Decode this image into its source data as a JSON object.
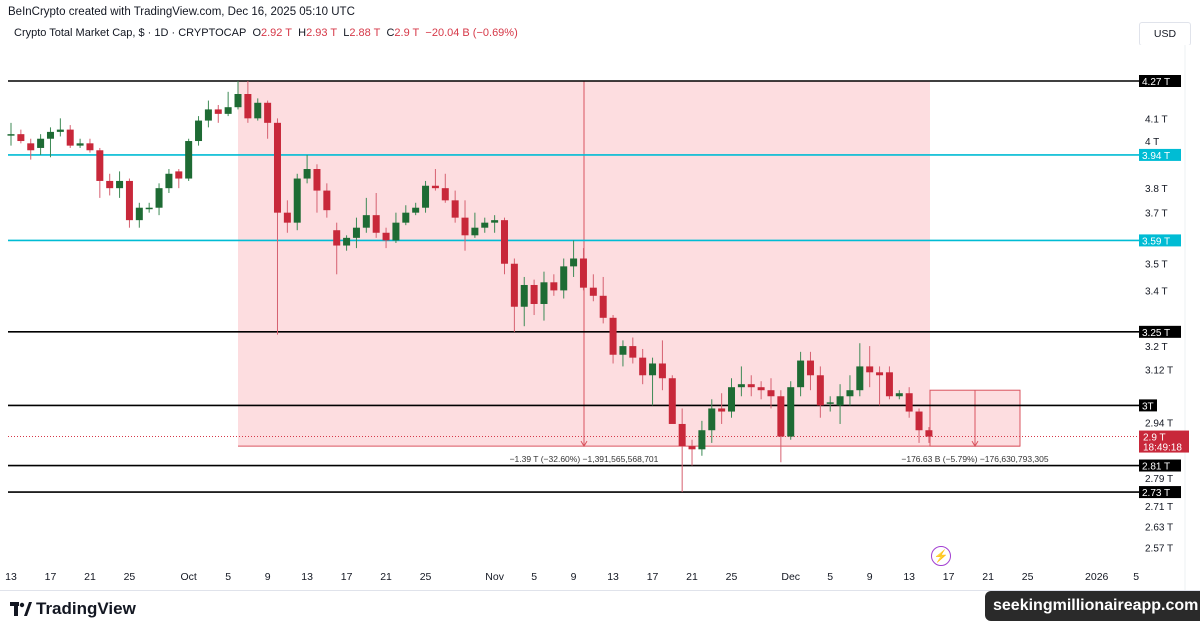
{
  "header": {
    "credit": "BeInCrypto created with TradingView.com, Dec 16, 2025 05:10 UTC",
    "symbol": "Crypto Total Market Cap, $ · 1D · CRYPTOCAP",
    "o_label": "O",
    "o": "2.92 T",
    "h_label": "H",
    "h": "2.93 T",
    "l_label": "L",
    "l": "2.88 T",
    "c_label": "C",
    "c": "2.9 T",
    "change": "−20.04 B (−0.69%)",
    "currency": "USD"
  },
  "footer": {
    "logo": "TradingView",
    "watermark": "seekingmillionaireapp.com"
  },
  "icons": {
    "alert": "lightning-icon"
  },
  "colors": {
    "up": "#1e6b34",
    "down": "#c8283a",
    "cyan": "#00bcd4",
    "zone": "#fddde0",
    "zone_border": "#d9545f"
  },
  "chart_data": {
    "type": "candlestick",
    "y_scale": "log",
    "ylim": [
      2.52,
      4.33
    ],
    "x_start": "2025-09-13",
    "candles_ohlc_T": [
      [
        4.03,
        4.08,
        3.98,
        4.03
      ],
      [
        4.03,
        4.05,
        3.99,
        4.0
      ],
      [
        3.99,
        4.01,
        3.92,
        3.96
      ],
      [
        3.97,
        4.03,
        3.94,
        4.01
      ],
      [
        4.01,
        4.06,
        3.93,
        4.04
      ],
      [
        4.04,
        4.1,
        4.02,
        4.05
      ],
      [
        4.05,
        4.07,
        3.97,
        3.98
      ],
      [
        3.98,
        4.01,
        3.97,
        3.99
      ],
      [
        3.99,
        4.01,
        3.95,
        3.96
      ],
      [
        3.96,
        3.97,
        3.76,
        3.83
      ],
      [
        3.83,
        3.86,
        3.77,
        3.8
      ],
      [
        3.8,
        3.87,
        3.76,
        3.83
      ],
      [
        3.83,
        3.84,
        3.64,
        3.67
      ],
      [
        3.67,
        3.74,
        3.64,
        3.72
      ],
      [
        3.72,
        3.74,
        3.7,
        3.72
      ],
      [
        3.72,
        3.82,
        3.69,
        3.8
      ],
      [
        3.8,
        3.88,
        3.78,
        3.86
      ],
      [
        3.87,
        3.88,
        3.8,
        3.84
      ],
      [
        3.84,
        4.01,
        3.83,
        4.0
      ],
      [
        4.0,
        4.11,
        3.98,
        4.09
      ],
      [
        4.09,
        4.18,
        4.06,
        4.14
      ],
      [
        4.14,
        4.16,
        4.08,
        4.12
      ],
      [
        4.12,
        4.22,
        4.11,
        4.15
      ],
      [
        4.15,
        4.27,
        4.14,
        4.21
      ],
      [
        4.21,
        4.27,
        4.08,
        4.1
      ],
      [
        4.1,
        4.19,
        4.09,
        4.17
      ],
      [
        4.17,
        4.18,
        4.01,
        4.08
      ],
      [
        4.08,
        4.1,
        3.24,
        3.7
      ],
      [
        3.7,
        3.75,
        3.62,
        3.66
      ],
      [
        3.66,
        3.86,
        3.63,
        3.84
      ],
      [
        3.84,
        3.94,
        3.82,
        3.88
      ],
      [
        3.88,
        3.9,
        3.7,
        3.79
      ],
      [
        3.79,
        3.82,
        3.68,
        3.71
      ],
      [
        3.63,
        3.66,
        3.46,
        3.57
      ],
      [
        3.57,
        3.61,
        3.55,
        3.6
      ],
      [
        3.6,
        3.68,
        3.56,
        3.64
      ],
      [
        3.64,
        3.76,
        3.62,
        3.69
      ],
      [
        3.69,
        3.78,
        3.6,
        3.62
      ],
      [
        3.62,
        3.64,
        3.56,
        3.59
      ],
      [
        3.59,
        3.7,
        3.58,
        3.66
      ],
      [
        3.66,
        3.73,
        3.65,
        3.7
      ],
      [
        3.7,
        3.74,
        3.69,
        3.72
      ],
      [
        3.72,
        3.83,
        3.7,
        3.81
      ],
      [
        3.81,
        3.88,
        3.79,
        3.8
      ],
      [
        3.8,
        3.86,
        3.74,
        3.75
      ],
      [
        3.75,
        3.79,
        3.66,
        3.68
      ],
      [
        3.68,
        3.75,
        3.55,
        3.61
      ],
      [
        3.61,
        3.7,
        3.6,
        3.64
      ],
      [
        3.64,
        3.68,
        3.62,
        3.66
      ],
      [
        3.66,
        3.69,
        3.62,
        3.67
      ],
      [
        3.67,
        3.68,
        3.46,
        3.5
      ],
      [
        3.5,
        3.52,
        3.25,
        3.34
      ],
      [
        3.34,
        3.45,
        3.27,
        3.42
      ],
      [
        3.42,
        3.44,
        3.31,
        3.35
      ],
      [
        3.35,
        3.47,
        3.29,
        3.43
      ],
      [
        3.43,
        3.46,
        3.38,
        3.4
      ],
      [
        3.4,
        3.52,
        3.37,
        3.49
      ],
      [
        3.49,
        3.59,
        3.45,
        3.52
      ],
      [
        3.52,
        3.56,
        3.4,
        3.41
      ],
      [
        3.41,
        3.46,
        3.36,
        3.38
      ],
      [
        3.38,
        3.45,
        3.28,
        3.3
      ],
      [
        3.3,
        3.31,
        3.14,
        3.17
      ],
      [
        3.17,
        3.22,
        3.13,
        3.2
      ],
      [
        3.2,
        3.23,
        3.14,
        3.16
      ],
      [
        3.16,
        3.19,
        3.07,
        3.1
      ],
      [
        3.1,
        3.16,
        3.0,
        3.14
      ],
      [
        3.14,
        3.22,
        3.05,
        3.09
      ],
      [
        3.09,
        3.1,
        2.96,
        2.94
      ],
      [
        2.94,
        2.99,
        2.73,
        2.87
      ],
      [
        2.87,
        2.89,
        2.81,
        2.86
      ],
      [
        2.86,
        2.95,
        2.84,
        2.92
      ],
      [
        2.92,
        3.02,
        2.88,
        2.99
      ],
      [
        2.99,
        3.04,
        2.94,
        2.98
      ],
      [
        2.98,
        3.09,
        2.96,
        3.06
      ],
      [
        3.06,
        3.13,
        3.03,
        3.07
      ],
      [
        3.07,
        3.1,
        3.03,
        3.06
      ],
      [
        3.06,
        3.08,
        3.02,
        3.05
      ],
      [
        3.05,
        3.09,
        2.99,
        3.03
      ],
      [
        3.03,
        3.05,
        2.82,
        2.9
      ],
      [
        2.9,
        3.08,
        2.89,
        3.06
      ],
      [
        3.06,
        3.18,
        3.03,
        3.15
      ],
      [
        3.15,
        3.18,
        3.05,
        3.1
      ],
      [
        3.1,
        3.13,
        2.96,
        3.0
      ],
      [
        3.01,
        3.03,
        2.98,
        3.01
      ],
      [
        3.0,
        3.07,
        2.94,
        3.03
      ],
      [
        3.03,
        3.1,
        3.0,
        3.05
      ],
      [
        3.05,
        3.21,
        3.03,
        3.13
      ],
      [
        3.13,
        3.2,
        3.06,
        3.11
      ],
      [
        3.11,
        3.13,
        3.0,
        3.1
      ],
      [
        3.11,
        3.13,
        3.02,
        3.03
      ],
      [
        3.03,
        3.05,
        3.02,
        3.04
      ],
      [
        3.04,
        3.06,
        2.96,
        2.98
      ],
      [
        2.98,
        2.99,
        2.88,
        2.92
      ],
      [
        2.92,
        2.93,
        2.88,
        2.9
      ]
    ],
    "x_ticks": [
      {
        "label": "13",
        "day": 0
      },
      {
        "label": "17",
        "day": 4
      },
      {
        "label": "21",
        "day": 8
      },
      {
        "label": "25",
        "day": 12
      },
      {
        "label": "Oct",
        "day": 18
      },
      {
        "label": "5",
        "day": 22
      },
      {
        "label": "9",
        "day": 26
      },
      {
        "label": "13",
        "day": 30
      },
      {
        "label": "17",
        "day": 34
      },
      {
        "label": "21",
        "day": 38
      },
      {
        "label": "25",
        "day": 42
      },
      {
        "label": "Nov",
        "day": 49
      },
      {
        "label": "5",
        "day": 53
      },
      {
        "label": "9",
        "day": 57
      },
      {
        "label": "13",
        "day": 61
      },
      {
        "label": "17",
        "day": 65
      },
      {
        "label": "21",
        "day": 69
      },
      {
        "label": "25",
        "day": 73
      },
      {
        "label": "Dec",
        "day": 79
      },
      {
        "label": "5",
        "day": 83
      },
      {
        "label": "9",
        "day": 87
      },
      {
        "label": "13",
        "day": 91
      },
      {
        "label": "17",
        "day": 95
      },
      {
        "label": "21",
        "day": 99
      },
      {
        "label": "25",
        "day": 103
      },
      {
        "label": "2026",
        "day": 110
      },
      {
        "label": "5",
        "day": 114
      }
    ],
    "y_ticks": [
      {
        "label": "4.1 T",
        "v": 4.1
      },
      {
        "label": "4 T",
        "v": 4.0
      },
      {
        "label": "3.8 T",
        "v": 3.8
      },
      {
        "label": "3.7 T",
        "v": 3.7
      },
      {
        "label": "3.5 T",
        "v": 3.5
      },
      {
        "label": "3.4 T",
        "v": 3.4
      },
      {
        "label": "3.2 T",
        "v": 3.2
      },
      {
        "label": "3.12 T",
        "v": 3.12
      },
      {
        "label": "2.94 T",
        "v": 2.94
      },
      {
        "label": "2.79 T",
        "v": 2.79
      },
      {
        "label": "2.71 T",
        "v": 2.71
      },
      {
        "label": "2.63 T",
        "v": 2.63
      },
      {
        "label": "2.57 T",
        "v": 2.57
      }
    ],
    "levels": [
      {
        "label": "4.27 T",
        "v": 4.27,
        "color": "black"
      },
      {
        "label": "3.94 T",
        "v": 3.94,
        "color": "cyan"
      },
      {
        "label": "3.59 T",
        "v": 3.59,
        "color": "cyan"
      },
      {
        "label": "3.25 T",
        "v": 3.25,
        "color": "black"
      },
      {
        "label": "3T",
        "v": 3.0,
        "color": "black"
      },
      {
        "label": "2.81 T",
        "v": 2.81,
        "color": "black"
      },
      {
        "label": "2.73 T",
        "v": 2.73,
        "color": "black"
      }
    ],
    "current_price": {
      "label": "2.9 T",
      "countdown": "18:49:18",
      "v": 2.9
    },
    "measures": [
      {
        "from_day": 23,
        "to_day": 93,
        "top": 4.27,
        "bottom": 2.87,
        "arrow_day": 57,
        "label": "−1.39 T (−32.60%) −1,391,565,568,701"
      },
      {
        "from_day": 93,
        "to_day": 102,
        "top": 3.05,
        "bottom": 2.87,
        "arrow_day": 97,
        "label": "−176.63 B (−5.79%) −176,630,793,305"
      }
    ]
  }
}
